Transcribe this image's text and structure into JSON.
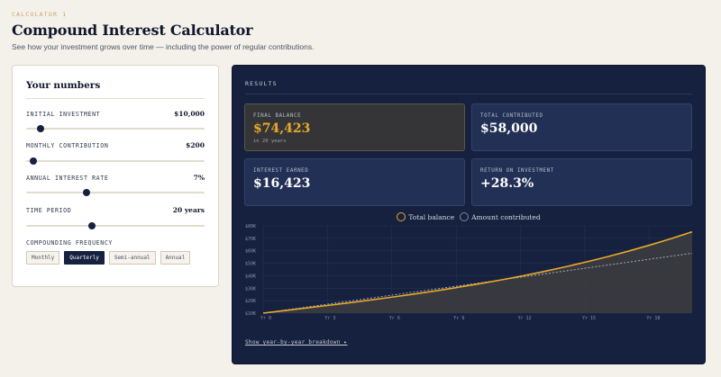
{
  "header": {
    "eyebrow": "CALCULATOR 1",
    "title": "Compound Interest Calculator",
    "subtitle": "See how your investment grows over time — including the power of regular contributions."
  },
  "inputs": {
    "title": "Your numbers",
    "initial": {
      "label": "INITIAL INVESTMENT",
      "value": "$10,000",
      "level": 0.08
    },
    "monthly": {
      "label": "MONTHLY CONTRIBUTION",
      "value": "$200",
      "level": 0.04
    },
    "rate": {
      "label": "ANNUAL INTEREST RATE",
      "value": "7%",
      "level": 0.34
    },
    "period": {
      "label": "TIME PERIOD",
      "value": "20 years",
      "level": 0.37
    },
    "frequency": {
      "label": "COMPOUNDING FREQUENCY",
      "options": [
        "Monthly",
        "Quarterly",
        "Semi-annual",
        "Annual"
      ],
      "selected": "Quarterly"
    }
  },
  "results": {
    "label": "RESULTS",
    "final_balance": {
      "label": "FINAL BALANCE",
      "value": "$74,423",
      "sub": "in 20 years"
    },
    "total_contributed": {
      "label": "TOTAL CONTRIBUTED",
      "value": "$58,000"
    },
    "interest_earned": {
      "label": "INTEREST EARNED",
      "value": "$16,423"
    },
    "roi": {
      "label": "RETURN ON INVESTMENT",
      "value": "+28.3%"
    },
    "breakdown_link": "Show year-by-year breakdown ▸"
  },
  "colors": {
    "accent": "#e9a92b",
    "panel": "#16213f",
    "contributed_line": "#a7adbb"
  },
  "chart_data": {
    "type": "line",
    "x": [
      0,
      1,
      2,
      3,
      4,
      5,
      6,
      7,
      8,
      9,
      10,
      11,
      12,
      13,
      14,
      15,
      16,
      17,
      18,
      19,
      20
    ],
    "x_tick_labels": [
      "Yr 0",
      "Yr 3",
      "Yr 6",
      "Yr 9",
      "Yr 12",
      "Yr 15",
      "Yr 18"
    ],
    "x_ticks": [
      0,
      3,
      6,
      9,
      12,
      15,
      18
    ],
    "y_tick_labels": [
      "$10K",
      "$20K",
      "$30K",
      "$40K",
      "$50K",
      "$60K",
      "$70K",
      "$80K"
    ],
    "y_ticks": [
      10000,
      20000,
      30000,
      40000,
      50000,
      60000,
      70000,
      80000
    ],
    "ylim": [
      10000,
      80000
    ],
    "xlim": [
      0,
      20
    ],
    "series": [
      {
        "name": "Total balance",
        "values": [
          10000,
          12400,
          14900,
          17500,
          20200,
          23000,
          25900,
          28900,
          32000,
          35300,
          38700,
          42300,
          46000,
          49900,
          53900,
          58100,
          62400,
          66900,
          71500,
          76300,
          74423
        ]
      },
      {
        "name": "Amount contributed",
        "values": [
          10000,
          12400,
          14800,
          17200,
          19600,
          22000,
          24400,
          26800,
          29200,
          31600,
          34000,
          36400,
          38800,
          41200,
          43600,
          46000,
          48400,
          50800,
          53200,
          55600,
          58000
        ]
      }
    ],
    "legend": "top-center",
    "grid": true
  }
}
